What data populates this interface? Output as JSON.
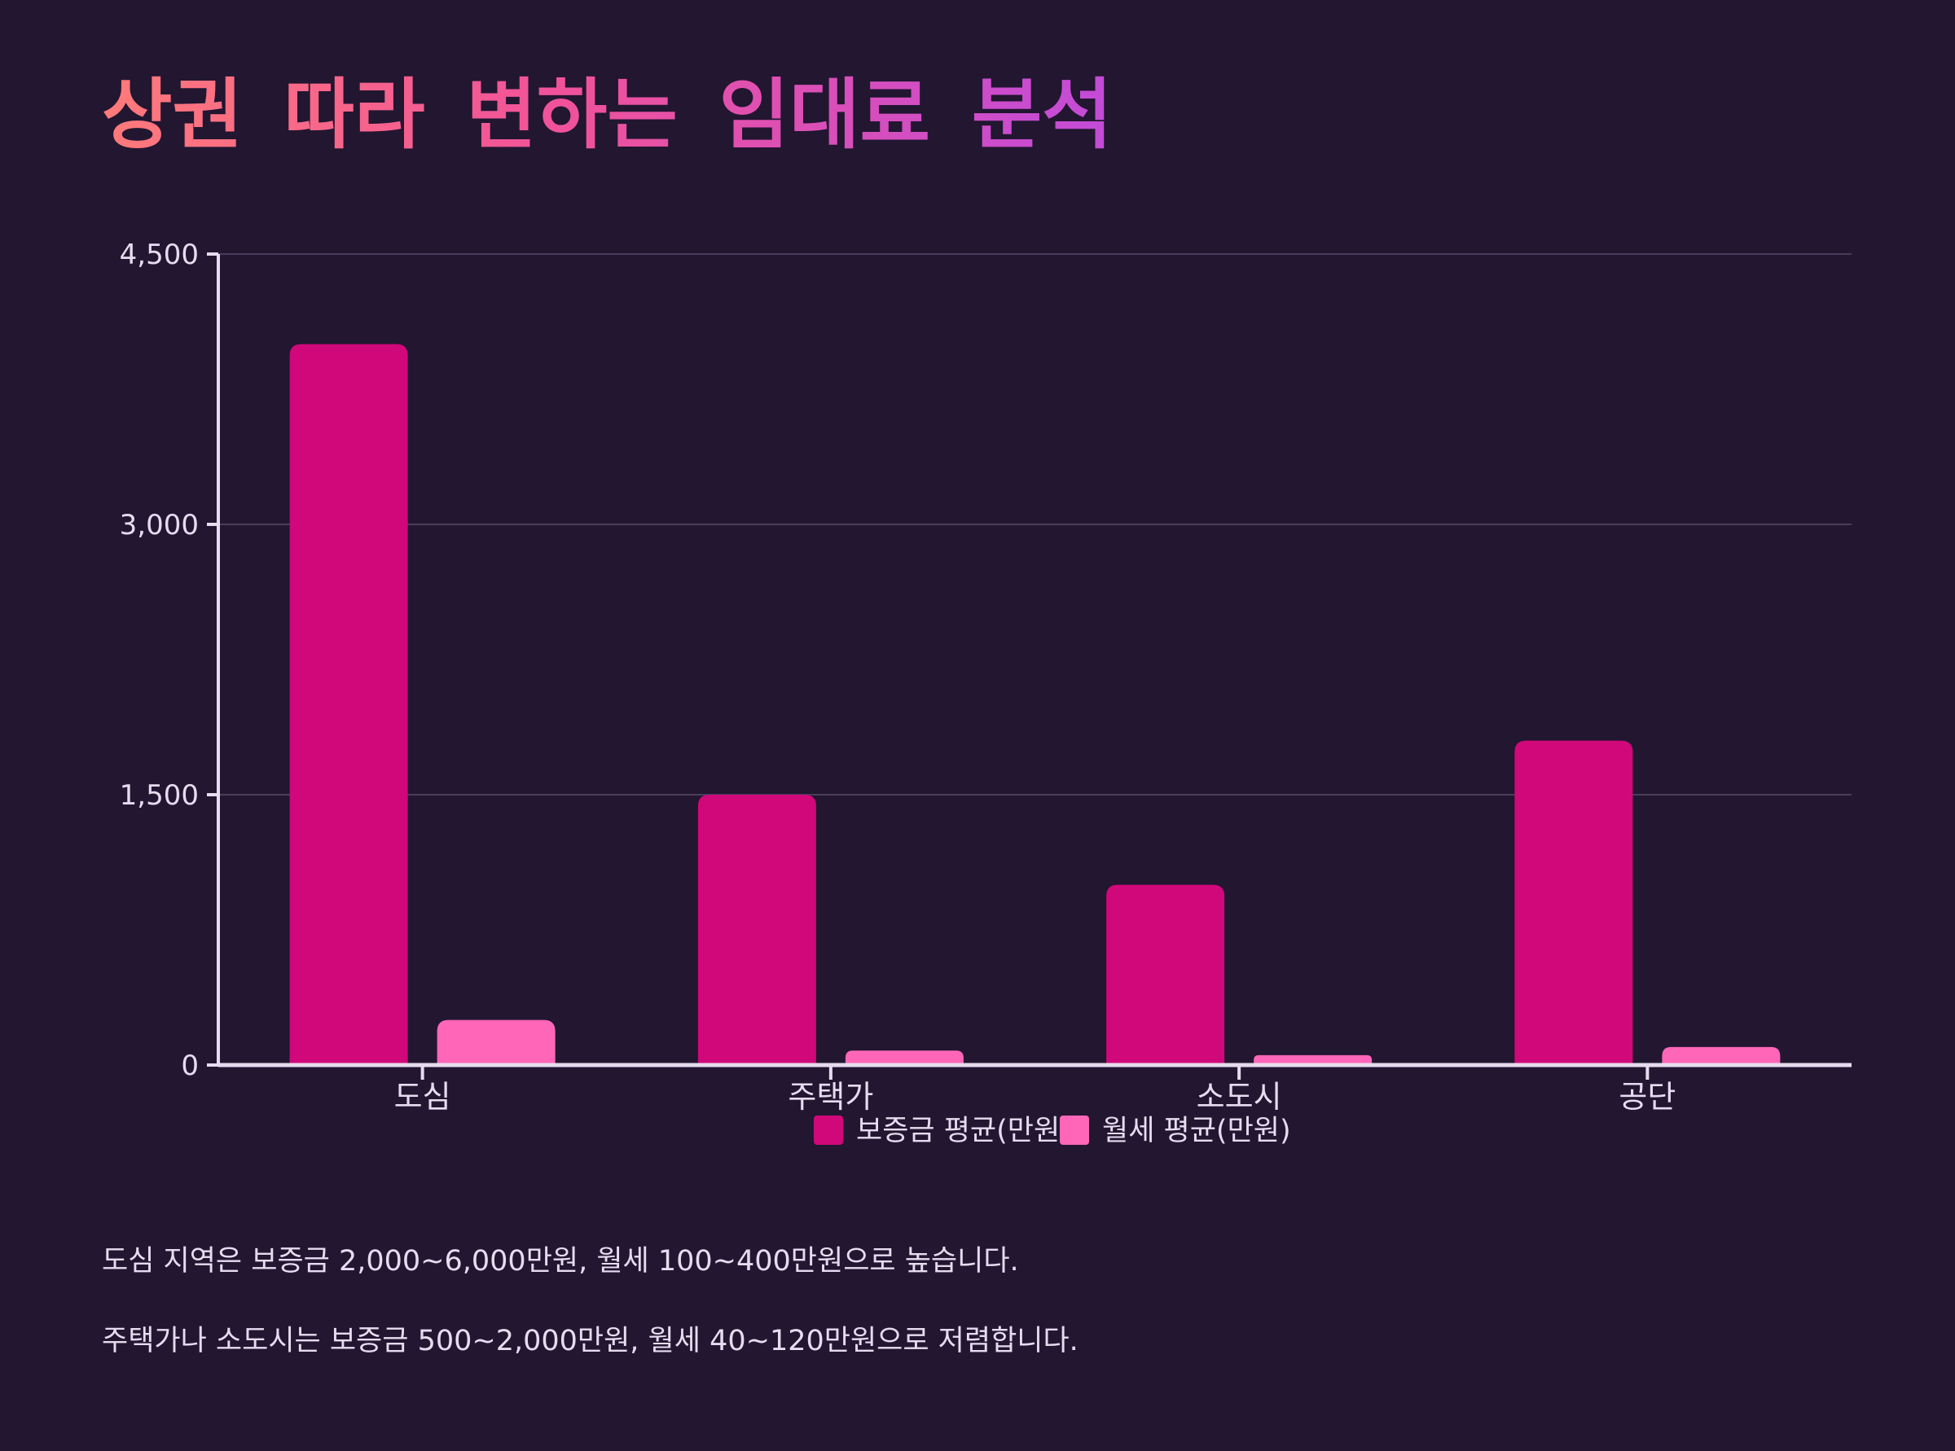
{
  "title": "상권 따라 변하는 임대료 분석",
  "chart_data": {
    "type": "bar",
    "title": "상권 따라 변하는 임대료 분석",
    "categories": [
      "도심",
      "주택가",
      "소도시",
      "공단"
    ],
    "series": [
      {
        "name": "보증금 평균(만원)",
        "color": "#d0087a",
        "values": [
          4000,
          1500,
          1000,
          1800
        ]
      },
      {
        "name": "월세 평균(만원)",
        "color": "#ff66b8",
        "values": [
          250,
          80,
          55,
          100
        ]
      }
    ],
    "ylim": [
      0,
      4500
    ],
    "yticks": [
      0,
      1500,
      3000,
      4500
    ],
    "ytick_labels": [
      "0",
      "1,500",
      "3,000",
      "4,500"
    ],
    "xlabel": "",
    "ylabel": "",
    "grid": true,
    "legend_position": "bottom-center"
  },
  "notes": [
    "도심 지역은 보증금 2,000~6,000만원, 월세 100~400만원으로 높습니다.",
    "주택가나 소도시는 보증금 500~2,000만원, 월세 40~120만원으로 저렴합니다."
  ]
}
